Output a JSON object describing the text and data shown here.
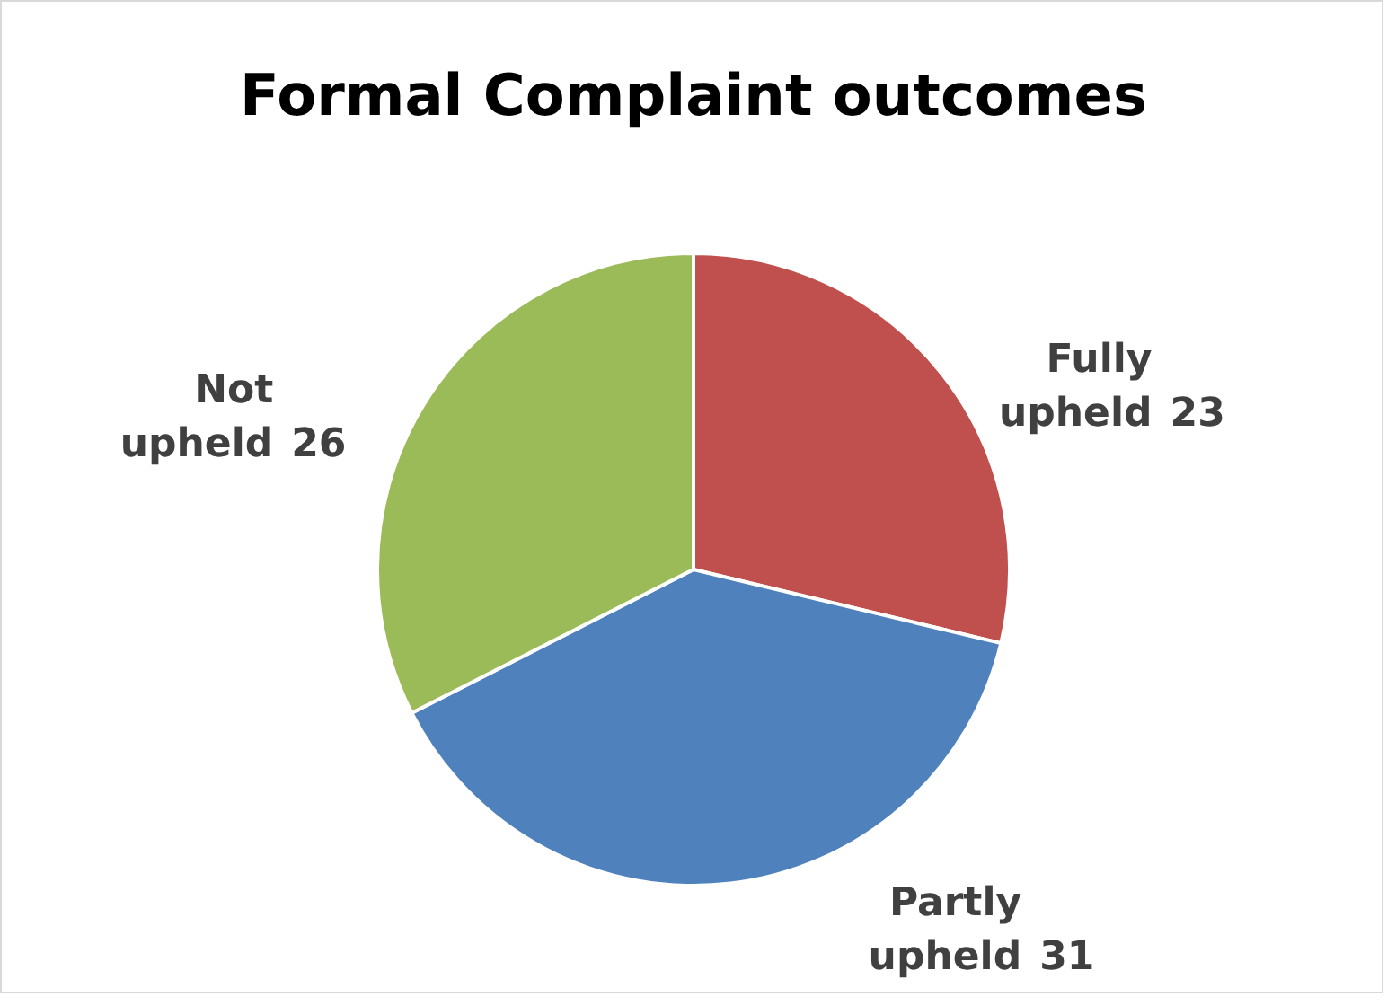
{
  "chart_data": {
    "type": "pie",
    "title": "Formal Complaint outcomes",
    "categories": [
      "Fully upheld",
      "Partly upheld",
      "Not upheld"
    ],
    "values": [
      23,
      31,
      26
    ],
    "colors": [
      "#c0504d",
      "#4f81bd",
      "#9bbb59"
    ],
    "data_labels": true,
    "legend": false
  }
}
